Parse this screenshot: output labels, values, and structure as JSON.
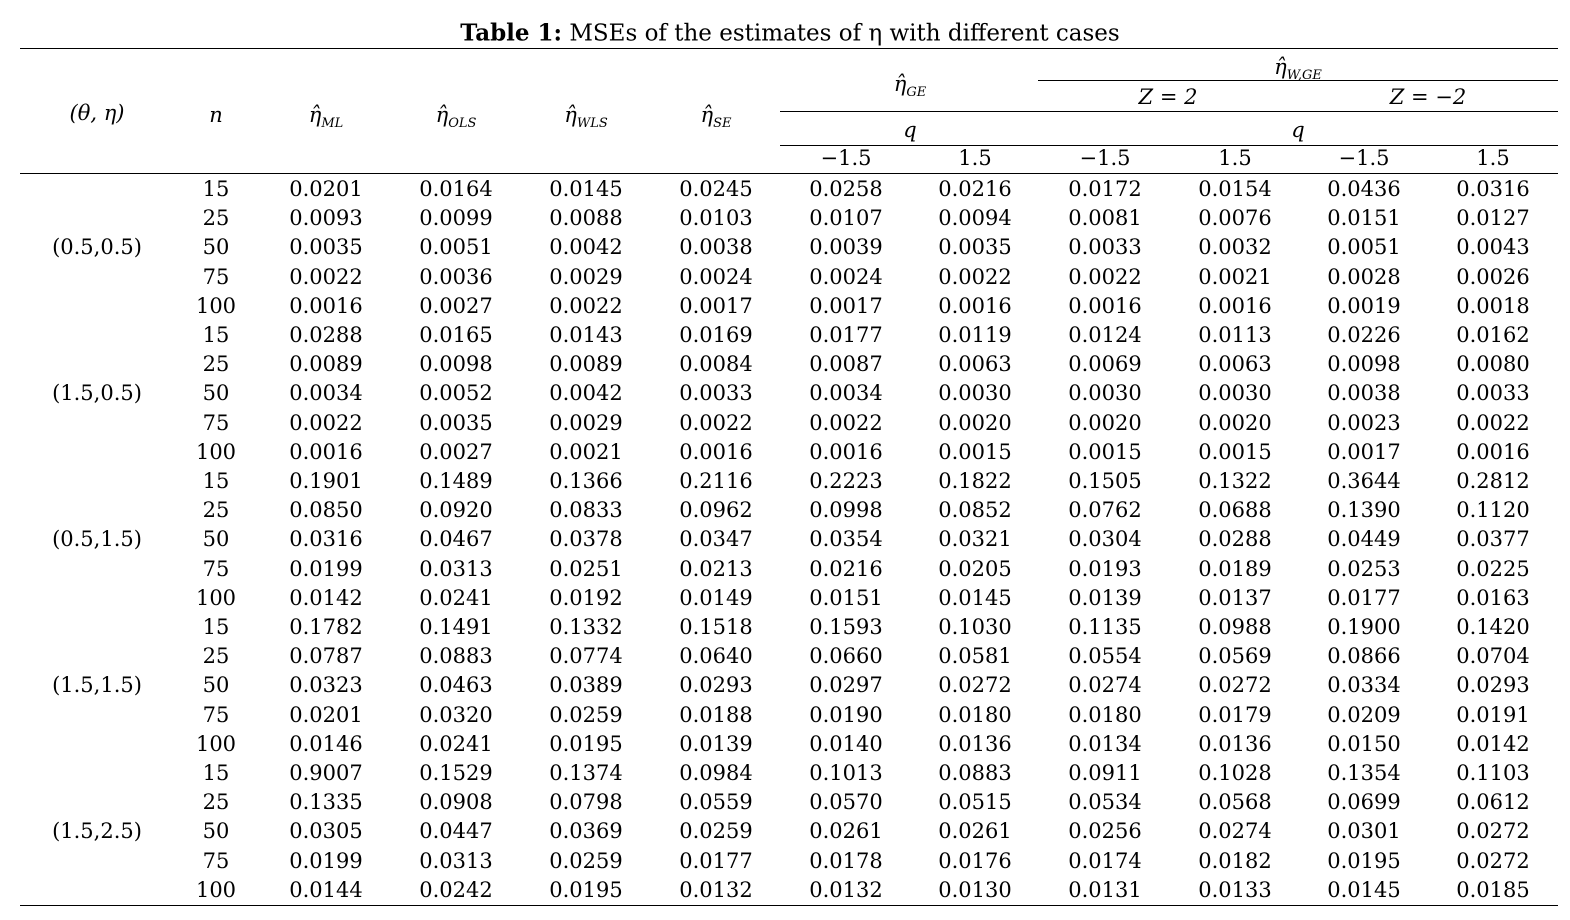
{
  "title": {
    "label": "Table 1:",
    "text": "MSEs of the estimates of η with different cases"
  },
  "header": {
    "theta_eta": "(θ, η)",
    "n": "n",
    "symbol": "η̂",
    "estimators": [
      "ML",
      "OLS",
      "WLS",
      "SE"
    ],
    "ge": "GE",
    "wge": "W,GE",
    "z": [
      "Z = 2",
      "Z = −2"
    ],
    "q": "q",
    "q_values": [
      "−1.5",
      "1.5"
    ]
  },
  "groups": [
    {
      "label": "(0.5,0.5)",
      "rows": [
        [
          "15",
          "0.0201",
          "0.0164",
          "0.0145",
          "0.0245",
          "0.0258",
          "0.0216",
          "0.0172",
          "0.0154",
          "0.0436",
          "0.0316"
        ],
        [
          "25",
          "0.0093",
          "0.0099",
          "0.0088",
          "0.0103",
          "0.0107",
          "0.0094",
          "0.0081",
          "0.0076",
          "0.0151",
          "0.0127"
        ],
        [
          "50",
          "0.0035",
          "0.0051",
          "0.0042",
          "0.0038",
          "0.0039",
          "0.0035",
          "0.0033",
          "0.0032",
          "0.0051",
          "0.0043"
        ],
        [
          "75",
          "0.0022",
          "0.0036",
          "0.0029",
          "0.0024",
          "0.0024",
          "0.0022",
          "0.0022",
          "0.0021",
          "0.0028",
          "0.0026"
        ],
        [
          "100",
          "0.0016",
          "0.0027",
          "0.0022",
          "0.0017",
          "0.0017",
          "0.0016",
          "0.0016",
          "0.0016",
          "0.0019",
          "0.0018"
        ]
      ]
    },
    {
      "label": "(1.5,0.5)",
      "rows": [
        [
          "15",
          "0.0288",
          "0.0165",
          "0.0143",
          "0.0169",
          "0.0177",
          "0.0119",
          "0.0124",
          "0.0113",
          "0.0226",
          "0.0162"
        ],
        [
          "25",
          "0.0089",
          "0.0098",
          "0.0089",
          "0.0084",
          "0.0087",
          "0.0063",
          "0.0069",
          "0.0063",
          "0.0098",
          "0.0080"
        ],
        [
          "50",
          "0.0034",
          "0.0052",
          "0.0042",
          "0.0033",
          "0.0034",
          "0.0030",
          "0.0030",
          "0.0030",
          "0.0038",
          "0.0033"
        ],
        [
          "75",
          "0.0022",
          "0.0035",
          "0.0029",
          "0.0022",
          "0.0022",
          "0.0020",
          "0.0020",
          "0.0020",
          "0.0023",
          "0.0022"
        ],
        [
          "100",
          "0.0016",
          "0.0027",
          "0.0021",
          "0.0016",
          "0.0016",
          "0.0015",
          "0.0015",
          "0.0015",
          "0.0017",
          "0.0016"
        ]
      ]
    },
    {
      "label": "(0.5,1.5)",
      "rows": [
        [
          "15",
          "0.1901",
          "0.1489",
          "0.1366",
          "0.2116",
          "0.2223",
          "0.1822",
          "0.1505",
          "0.1322",
          "0.3644",
          "0.2812"
        ],
        [
          "25",
          "0.0850",
          "0.0920",
          "0.0833",
          "0.0962",
          "0.0998",
          "0.0852",
          "0.0762",
          "0.0688",
          "0.1390",
          "0.1120"
        ],
        [
          "50",
          "0.0316",
          "0.0467",
          "0.0378",
          "0.0347",
          "0.0354",
          "0.0321",
          "0.0304",
          "0.0288",
          "0.0449",
          "0.0377"
        ],
        [
          "75",
          "0.0199",
          "0.0313",
          "0.0251",
          "0.0213",
          "0.0216",
          "0.0205",
          "0.0193",
          "0.0189",
          "0.0253",
          "0.0225"
        ],
        [
          "100",
          "0.0142",
          "0.0241",
          "0.0192",
          "0.0149",
          "0.0151",
          "0.0145",
          "0.0139",
          "0.0137",
          "0.0177",
          "0.0163"
        ]
      ]
    },
    {
      "label": "(1.5,1.5)",
      "rows": [
        [
          "15",
          "0.1782",
          "0.1491",
          "0.1332",
          "0.1518",
          "0.1593",
          "0.1030",
          "0.1135",
          "0.0988",
          "0.1900",
          "0.1420"
        ],
        [
          "25",
          "0.0787",
          "0.0883",
          "0.0774",
          "0.0640",
          "0.0660",
          "0.0581",
          "0.0554",
          "0.0569",
          "0.0866",
          "0.0704"
        ],
        [
          "50",
          "0.0323",
          "0.0463",
          "0.0389",
          "0.0293",
          "0.0297",
          "0.0272",
          "0.0274",
          "0.0272",
          "0.0334",
          "0.0293"
        ],
        [
          "75",
          "0.0201",
          "0.0320",
          "0.0259",
          "0.0188",
          "0.0190",
          "0.0180",
          "0.0180",
          "0.0179",
          "0.0209",
          "0.0191"
        ],
        [
          "100",
          "0.0146",
          "0.0241",
          "0.0195",
          "0.0139",
          "0.0140",
          "0.0136",
          "0.0134",
          "0.0136",
          "0.0150",
          "0.0142"
        ]
      ]
    },
    {
      "label": "(1.5,2.5)",
      "rows": [
        [
          "15",
          "0.9007",
          "0.1529",
          "0.1374",
          "0.0984",
          "0.1013",
          "0.0883",
          "0.0911",
          "0.1028",
          "0.1354",
          "0.1103"
        ],
        [
          "25",
          "0.1335",
          "0.0908",
          "0.0798",
          "0.0559",
          "0.0570",
          "0.0515",
          "0.0534",
          "0.0568",
          "0.0699",
          "0.0612"
        ],
        [
          "50",
          "0.0305",
          "0.0447",
          "0.0369",
          "0.0259",
          "0.0261",
          "0.0261",
          "0.0256",
          "0.0274",
          "0.0301",
          "0.0272"
        ],
        [
          "75",
          "0.0199",
          "0.0313",
          "0.0259",
          "0.0177",
          "0.0178",
          "0.0176",
          "0.0174",
          "0.0182",
          "0.0195",
          "0.0272"
        ],
        [
          "100",
          "0.0144",
          "0.0242",
          "0.0195",
          "0.0132",
          "0.0132",
          "0.0130",
          "0.0131",
          "0.0133",
          "0.0145",
          "0.0185"
        ]
      ]
    }
  ]
}
